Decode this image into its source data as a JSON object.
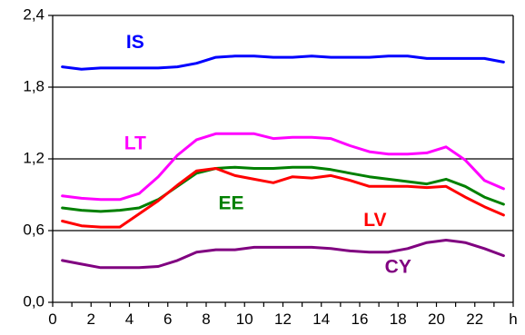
{
  "chart_data": {
    "type": "line",
    "title": "",
    "xlabel": "h",
    "ylabel": "",
    "xlim": [
      0,
      24
    ],
    "ylim": [
      0,
      2.4
    ],
    "x": [
      0.5,
      1.5,
      2.5,
      3.5,
      4.5,
      5.5,
      6.5,
      7.5,
      8.5,
      9.5,
      10.5,
      11.5,
      12.5,
      13.5,
      14.5,
      15.5,
      16.5,
      17.5,
      18.5,
      19.5,
      20.5,
      21.5,
      22.5,
      23.5
    ],
    "x_ticks": [
      "0",
      "2",
      "4",
      "6",
      "8",
      "10",
      "12",
      "14",
      "16",
      "18",
      "20",
      "22"
    ],
    "x_tick_values": [
      0,
      2,
      4,
      6,
      8,
      10,
      12,
      14,
      16,
      18,
      20,
      22
    ],
    "y_ticks": [
      "0,0",
      "0,6",
      "1,2",
      "1,8",
      "2,4"
    ],
    "y_tick_values": [
      0,
      0.6,
      1.2,
      1.8,
      2.4
    ],
    "grid": true,
    "series": [
      {
        "name": "IS",
        "color": "#0000ff",
        "label_x": 4.3,
        "label_y": 2.17,
        "values": [
          1.97,
          1.95,
          1.96,
          1.96,
          1.96,
          1.96,
          1.97,
          2.0,
          2.05,
          2.06,
          2.06,
          2.05,
          2.05,
          2.06,
          2.05,
          2.05,
          2.05,
          2.06,
          2.06,
          2.04,
          2.04,
          2.04,
          2.04,
          2.01
        ]
      },
      {
        "name": "LT",
        "color": "#ff00ff",
        "label_x": 4.3,
        "label_y": 1.32,
        "values": [
          0.89,
          0.87,
          0.86,
          0.86,
          0.91,
          1.05,
          1.23,
          1.36,
          1.41,
          1.41,
          1.41,
          1.37,
          1.38,
          1.38,
          1.37,
          1.31,
          1.26,
          1.24,
          1.24,
          1.25,
          1.3,
          1.19,
          1.02,
          0.95
        ]
      },
      {
        "name": "EE",
        "color": "#008000",
        "label_x": 9.3,
        "label_y": 0.82,
        "values": [
          0.79,
          0.77,
          0.76,
          0.77,
          0.79,
          0.86,
          0.97,
          1.08,
          1.12,
          1.13,
          1.12,
          1.12,
          1.13,
          1.13,
          1.11,
          1.08,
          1.05,
          1.03,
          1.01,
          0.99,
          1.03,
          0.97,
          0.88,
          0.82
        ]
      },
      {
        "name": "LV",
        "color": "#ff0000",
        "label_x": 16.8,
        "label_y": 0.68,
        "values": [
          0.68,
          0.64,
          0.63,
          0.63,
          0.74,
          0.85,
          0.98,
          1.1,
          1.12,
          1.06,
          1.03,
          1.0,
          1.05,
          1.04,
          1.06,
          1.02,
          0.97,
          0.97,
          0.97,
          0.96,
          0.97,
          0.88,
          0.8,
          0.73
        ]
      },
      {
        "name": "CY",
        "color": "#800080",
        "label_x": 18.0,
        "label_y": 0.29,
        "values": [
          0.35,
          0.32,
          0.29,
          0.29,
          0.29,
          0.3,
          0.35,
          0.42,
          0.44,
          0.44,
          0.46,
          0.46,
          0.46,
          0.46,
          0.45,
          0.43,
          0.42,
          0.42,
          0.45,
          0.5,
          0.52,
          0.5,
          0.45,
          0.39
        ]
      }
    ]
  }
}
